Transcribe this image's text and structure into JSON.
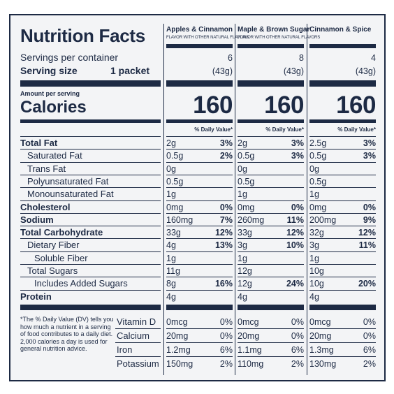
{
  "title": "Nutrition Facts",
  "columns": [
    {
      "name": "Apples & Cinnamon",
      "sub": "FLAVOR WITH OTHER NATURAL FLAVORS",
      "servings": "6",
      "serving_size": "(43g)",
      "calories": "160"
    },
    {
      "name": "Maple & Brown Sugar",
      "sub": "FLAVOR WITH OTHER NATURAL FLAVORS",
      "servings": "8",
      "serving_size": "(43g)",
      "calories": "160"
    },
    {
      "name": "Cinnamon & Spice",
      "sub": "",
      "servings": "4",
      "serving_size": "(43g)",
      "calories": "160"
    }
  ],
  "servings_label": "Servings per container",
  "serving_size_label": "Serving size",
  "serving_size_value": "1 packet",
  "amount_per_serving": "Amount per serving",
  "calories_label": "Calories",
  "dv_header": "% Daily Value*",
  "nutrients": [
    {
      "label": "Total Fat",
      "bold": true,
      "vals": [
        [
          "2g",
          "3%"
        ],
        [
          "2g",
          "3%"
        ],
        [
          "2.5g",
          "3%"
        ]
      ]
    },
    {
      "label": "Saturated Fat",
      "bold": false,
      "vals": [
        [
          "0.5g",
          "2%"
        ],
        [
          "0.5g",
          "3%"
        ],
        [
          "0.5g",
          "3%"
        ]
      ]
    },
    {
      "label": "Trans Fat",
      "bold": false,
      "vals": [
        [
          "0g",
          ""
        ],
        [
          "0g",
          ""
        ],
        [
          "0g",
          ""
        ]
      ]
    },
    {
      "label": "Polyunsaturated Fat",
      "bold": false,
      "vals": [
        [
          "0.5g",
          ""
        ],
        [
          "0.5g",
          ""
        ],
        [
          "0.5g",
          ""
        ]
      ]
    },
    {
      "label": "Monounsaturated Fat",
      "bold": false,
      "vals": [
        [
          "1g",
          ""
        ],
        [
          "1g",
          ""
        ],
        [
          "1g",
          ""
        ]
      ]
    },
    {
      "label": "Cholesterol",
      "bold": true,
      "vals": [
        [
          "0mg",
          "0%"
        ],
        [
          "0mg",
          "0%"
        ],
        [
          "0mg",
          "0%"
        ]
      ]
    },
    {
      "label": "Sodium",
      "bold": true,
      "vals": [
        [
          "160mg",
          "7%"
        ],
        [
          "260mg",
          "11%"
        ],
        [
          "200mg",
          "9%"
        ]
      ]
    },
    {
      "label": "Total Carbohydrate",
      "bold": true,
      "vals": [
        [
          "33g",
          "12%"
        ],
        [
          "33g",
          "12%"
        ],
        [
          "32g",
          "12%"
        ]
      ]
    },
    {
      "label": "Dietary Fiber",
      "bold": false,
      "vals": [
        [
          "4g",
          "13%"
        ],
        [
          "3g",
          "10%"
        ],
        [
          "3g",
          "11%"
        ]
      ]
    },
    {
      "label": "Soluble Fiber",
      "bold": false,
      "vals": [
        [
          "1g",
          ""
        ],
        [
          "1g",
          ""
        ],
        [
          "1g",
          ""
        ]
      ]
    },
    {
      "label": "Total Sugars",
      "bold": false,
      "vals": [
        [
          "11g",
          ""
        ],
        [
          "12g",
          ""
        ],
        [
          "10g",
          ""
        ]
      ]
    },
    {
      "label": "Includes Added Sugars",
      "bold": false,
      "vals": [
        [
          "8g",
          "16%"
        ],
        [
          "12g",
          "24%"
        ],
        [
          "10g",
          "20%"
        ]
      ]
    },
    {
      "label": "Protein",
      "bold": true,
      "vals": [
        [
          "4g",
          ""
        ],
        [
          "4g",
          ""
        ],
        [
          "4g",
          ""
        ]
      ]
    }
  ],
  "footnote": "*The % Daily Value (DV) tells you how much a nutrient in a serving of food contributes to a daily diet. 2,000 calories a day is used for general nutrition advice.",
  "vitamins": [
    {
      "label": "Vitamin D",
      "vals": [
        [
          "0mcg",
          "0%"
        ],
        [
          "0mcg",
          "0%"
        ],
        [
          "0mcg",
          "0%"
        ]
      ]
    },
    {
      "label": "Calcium",
      "vals": [
        [
          "20mg",
          "0%"
        ],
        [
          "20mg",
          "0%"
        ],
        [
          "20mg",
          "0%"
        ]
      ]
    },
    {
      "label": "Iron",
      "vals": [
        [
          "1.2mg",
          "6%"
        ],
        [
          "1.1mg",
          "6%"
        ],
        [
          "1.3mg",
          "6%"
        ]
      ]
    },
    {
      "label": "Potassium",
      "vals": [
        [
          "150mg",
          "2%"
        ],
        [
          "110mg",
          "2%"
        ],
        [
          "130mg",
          "2%"
        ]
      ]
    }
  ]
}
